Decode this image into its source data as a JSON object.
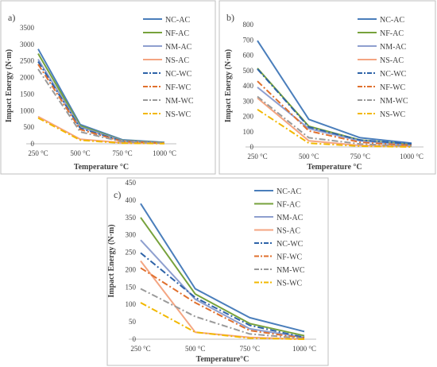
{
  "chart_data": [
    {
      "panel_label": "a)",
      "type": "line",
      "categories": [
        "250 °C",
        "500 °C",
        "750 °C",
        "1000 °C"
      ],
      "xlabel": "Temperature °C",
      "ylabel": "Impact Energy (N·m)",
      "ylim": [
        0,
        3500
      ],
      "yticks": [
        0,
        500,
        1000,
        1500,
        2000,
        2500,
        3000,
        3500
      ],
      "grid": false,
      "legend": "right",
      "series": [
        {
          "name": "NC-AC",
          "color": "#4a7ebb",
          "dash": "solid",
          "values": [
            2860,
            580,
            120,
            40
          ]
        },
        {
          "name": "NF-AC",
          "color": "#77a23c",
          "dash": "solid",
          "values": [
            2720,
            540,
            100,
            30
          ]
        },
        {
          "name": "NM-AC",
          "color": "#8e9fcf",
          "dash": "solid",
          "values": [
            2550,
            500,
            90,
            25
          ]
        },
        {
          "name": "NS-AC",
          "color": "#f4a582",
          "dash": "solid",
          "values": [
            820,
            140,
            30,
            10
          ]
        },
        {
          "name": "NC-WC",
          "color": "#2e63a8",
          "dash": "dashdot",
          "values": [
            2480,
            470,
            80,
            20
          ]
        },
        {
          "name": "NF-WC",
          "color": "#e0702e",
          "dash": "dashdot",
          "values": [
            2400,
            430,
            70,
            20
          ]
        },
        {
          "name": "NM-WC",
          "color": "#9a9a9a",
          "dash": "dashdot",
          "values": [
            2250,
            360,
            60,
            15
          ]
        },
        {
          "name": "NS-WC",
          "color": "#f2b800",
          "dash": "dashdot",
          "values": [
            780,
            110,
            20,
            5
          ]
        }
      ]
    },
    {
      "panel_label": "b)",
      "type": "line",
      "categories": [
        "250 °C",
        "500 °C",
        "750 °C",
        "1000 °C"
      ],
      "xlabel": "Temperature °C",
      "ylabel": "Impact Energy (N·m)",
      "ylim": [
        0,
        800
      ],
      "yticks": [
        0,
        100,
        200,
        300,
        400,
        500,
        600,
        700,
        800
      ],
      "grid": false,
      "legend": "right",
      "series": [
        {
          "name": "NC-AC",
          "color": "#4a7ebb",
          "dash": "solid",
          "values": [
            695,
            180,
            60,
            25
          ]
        },
        {
          "name": "NF-AC",
          "color": "#77a23c",
          "dash": "solid",
          "values": [
            515,
            135,
            45,
            15
          ]
        },
        {
          "name": "NM-AC",
          "color": "#8e9fcf",
          "dash": "solid",
          "values": [
            390,
            120,
            40,
            10
          ]
        },
        {
          "name": "NS-AC",
          "color": "#f4a582",
          "dash": "solid",
          "values": [
            320,
            40,
            10,
            5
          ]
        },
        {
          "name": "NC-WC",
          "color": "#2e63a8",
          "dash": "dashdot",
          "values": [
            510,
            130,
            45,
            20
          ]
        },
        {
          "name": "NF-WC",
          "color": "#e0702e",
          "dash": "dashdot",
          "values": [
            430,
            105,
            30,
            10
          ]
        },
        {
          "name": "NM-WC",
          "color": "#9a9a9a",
          "dash": "dashdot",
          "values": [
            330,
            60,
            20,
            5
          ]
        },
        {
          "name": "NS-WC",
          "color": "#f2b800",
          "dash": "dashdot",
          "values": [
            245,
            25,
            5,
            0
          ]
        }
      ]
    },
    {
      "panel_label": "c)",
      "type": "line",
      "categories": [
        "250 °C",
        "500 °C",
        "750 °C",
        "1000 °C"
      ],
      "xlabel": "Temperature°C",
      "ylabel": "Impact Energy (N·m)",
      "ylim": [
        0,
        450
      ],
      "yticks": [
        0,
        50,
        100,
        150,
        200,
        250,
        300,
        350,
        400,
        450
      ],
      "grid": false,
      "legend": "right",
      "series": [
        {
          "name": "NC-AC",
          "color": "#4a7ebb",
          "dash": "solid",
          "values": [
            390,
            145,
            62,
            22
          ]
        },
        {
          "name": "NF-AC",
          "color": "#77a23c",
          "dash": "solid",
          "values": [
            350,
            130,
            45,
            10
          ]
        },
        {
          "name": "NM-AC",
          "color": "#8e9fcf",
          "dash": "solid",
          "values": [
            285,
            115,
            30,
            5
          ]
        },
        {
          "name": "NS-AC",
          "color": "#f4a582",
          "dash": "solid",
          "values": [
            225,
            20,
            5,
            0
          ]
        },
        {
          "name": "NC-WC",
          "color": "#2e63a8",
          "dash": "dashdot",
          "values": [
            248,
            120,
            40,
            5
          ]
        },
        {
          "name": "NF-WC",
          "color": "#e0702e",
          "dash": "dashdot",
          "values": [
            205,
            105,
            25,
            3
          ]
        },
        {
          "name": "NM-WC",
          "color": "#9a9a9a",
          "dash": "dashdot",
          "values": [
            145,
            65,
            15,
            2
          ]
        },
        {
          "name": "NS-WC",
          "color": "#f2b800",
          "dash": "dashdot",
          "values": [
            105,
            20,
            3,
            0
          ]
        }
      ]
    }
  ]
}
